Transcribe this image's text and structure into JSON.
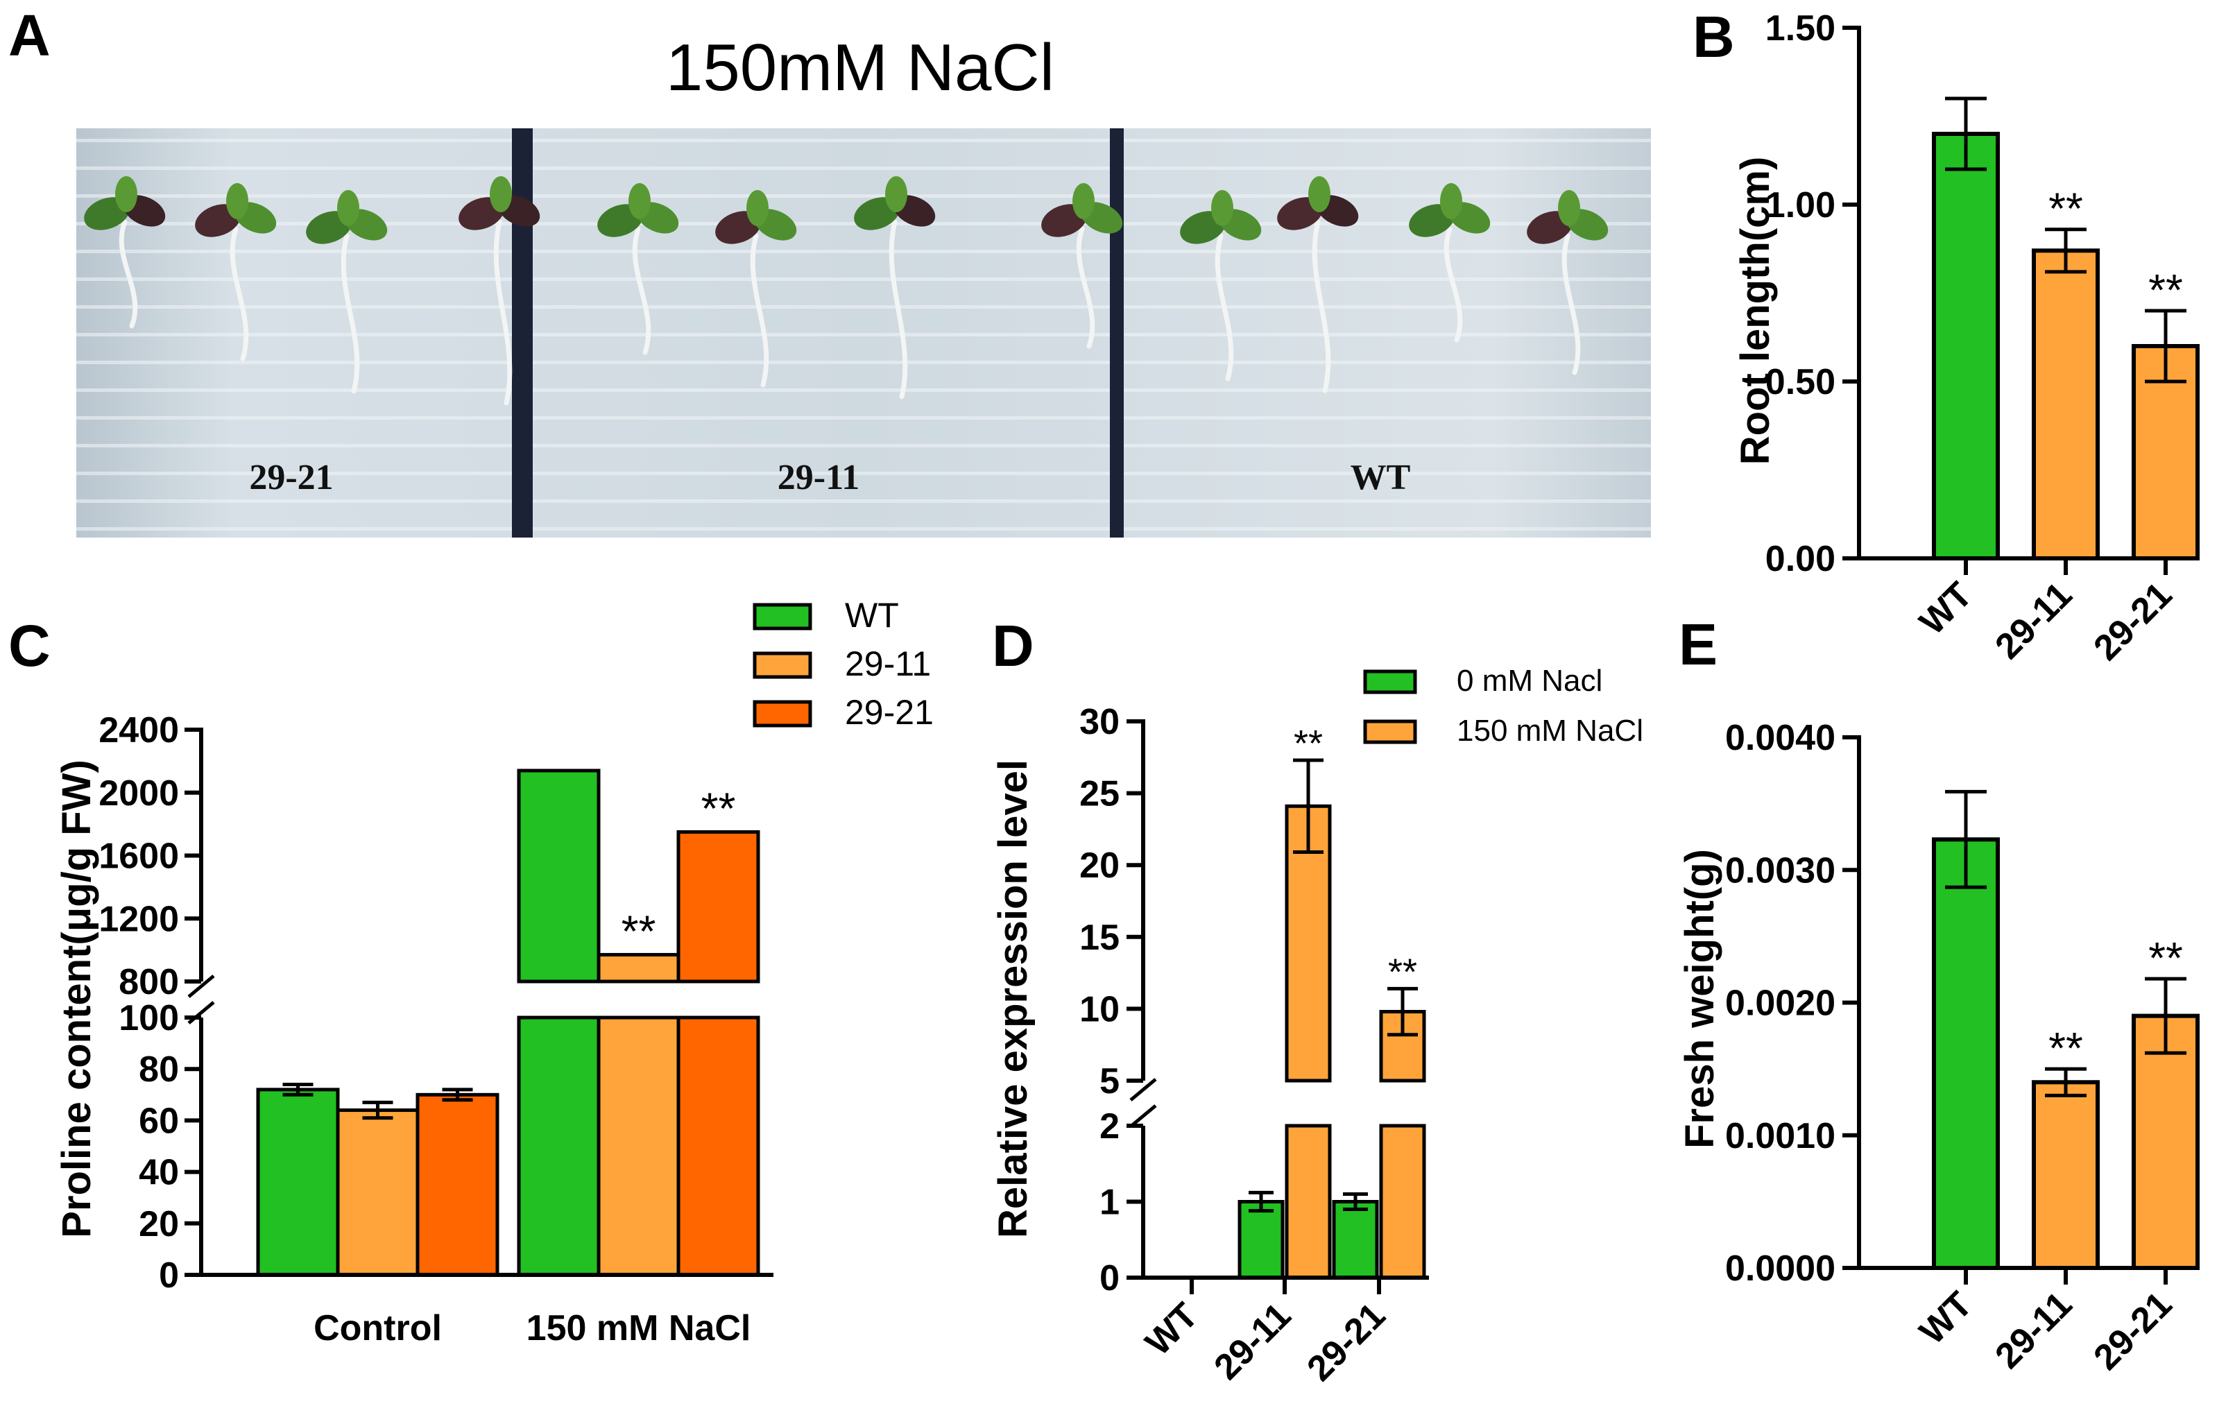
{
  "panels": {
    "A": {
      "letter": "A",
      "title": "150mM NaCl",
      "labels": [
        "29-21",
        "29-11",
        "WT"
      ]
    },
    "B": {
      "letter": "B"
    },
    "C": {
      "letter": "C"
    },
    "D": {
      "letter": "D"
    },
    "E": {
      "letter": "E"
    }
  },
  "colors": {
    "green": "#22c022",
    "orange_light": "#ffa43a",
    "orange_dark": "#ff6600",
    "edge": "#000000"
  },
  "chart_data": [
    {
      "id": "B",
      "type": "bar",
      "categories": [
        "WT",
        "29-11",
        "29-21"
      ],
      "values": [
        1.2,
        0.87,
        0.6
      ],
      "errors": [
        0.1,
        0.06,
        0.1
      ],
      "significance": [
        "",
        "**",
        "**"
      ],
      "ylabel": "Root length(cm)",
      "ylim": [
        0,
        1.5
      ],
      "yticks": [
        "0.00",
        "0.50",
        "1.00",
        "1.50"
      ],
      "ytick_values": [
        0,
        0.5,
        1.0,
        1.5
      ]
    },
    {
      "id": "C",
      "type": "bar",
      "groups": [
        "Control",
        "150 mM NaCl"
      ],
      "series": [
        {
          "name": "WT",
          "values": [
            72,
            2140
          ],
          "errors": [
            2,
            5
          ]
        },
        {
          "name": "29-11",
          "values": [
            64,
            970
          ],
          "errors": [
            3,
            5
          ]
        },
        {
          "name": "29-21",
          "values": [
            70,
            1750
          ],
          "errors": [
            2,
            5
          ]
        }
      ],
      "significance": [
        [
          "",
          "",
          ""
        ],
        [
          "",
          "**",
          "**"
        ]
      ],
      "ylabel": "Proline content(μg/g FW)",
      "axis_break": {
        "lower": [
          0,
          100
        ],
        "upper": [
          800,
          2400
        ]
      },
      "yticks_lower": [
        "0",
        "20",
        "40",
        "60",
        "80",
        "100"
      ],
      "yticks_upper": [
        "800",
        "1200",
        "1600",
        "2000",
        "2400"
      ],
      "legend": [
        "WT",
        "29-11",
        "29-21"
      ]
    },
    {
      "id": "D",
      "type": "bar",
      "categories": [
        "WT",
        "29-11",
        "29-21"
      ],
      "series": [
        {
          "name": "0 mM Nacl",
          "values": [
            0,
            1.0,
            1.0
          ],
          "errors": [
            0,
            0.12,
            0.1
          ]
        },
        {
          "name": "150 mM NaCl",
          "values": [
            0,
            24.1,
            9.8
          ],
          "errors": [
            0,
            3.2,
            1.6
          ]
        }
      ],
      "significance": [
        "",
        "**",
        "**"
      ],
      "ylabel": "Relative expression level",
      "axis_break": {
        "lower": [
          0,
          2
        ],
        "upper": [
          5,
          30
        ]
      },
      "yticks_lower": [
        "0",
        "1",
        "2"
      ],
      "yticks_upper": [
        "5",
        "10",
        "15",
        "20",
        "25",
        "30"
      ],
      "legend": [
        "0 mM Nacl",
        "150 mM NaCl"
      ]
    },
    {
      "id": "E",
      "type": "bar",
      "categories": [
        "WT",
        "29-11",
        "29-21"
      ],
      "values": [
        0.00323,
        0.0014,
        0.0019
      ],
      "errors": [
        0.00036,
        0.0001,
        0.00028
      ],
      "significance": [
        "",
        "**",
        "**"
      ],
      "ylabel": "Fresh weight(g)",
      "ylim": [
        0,
        0.004
      ],
      "yticks": [
        "0.0000",
        "0.0010",
        "0.0020",
        "0.0030",
        "0.0040"
      ],
      "ytick_values": [
        0,
        0.001,
        0.002,
        0.003,
        0.004
      ]
    }
  ]
}
